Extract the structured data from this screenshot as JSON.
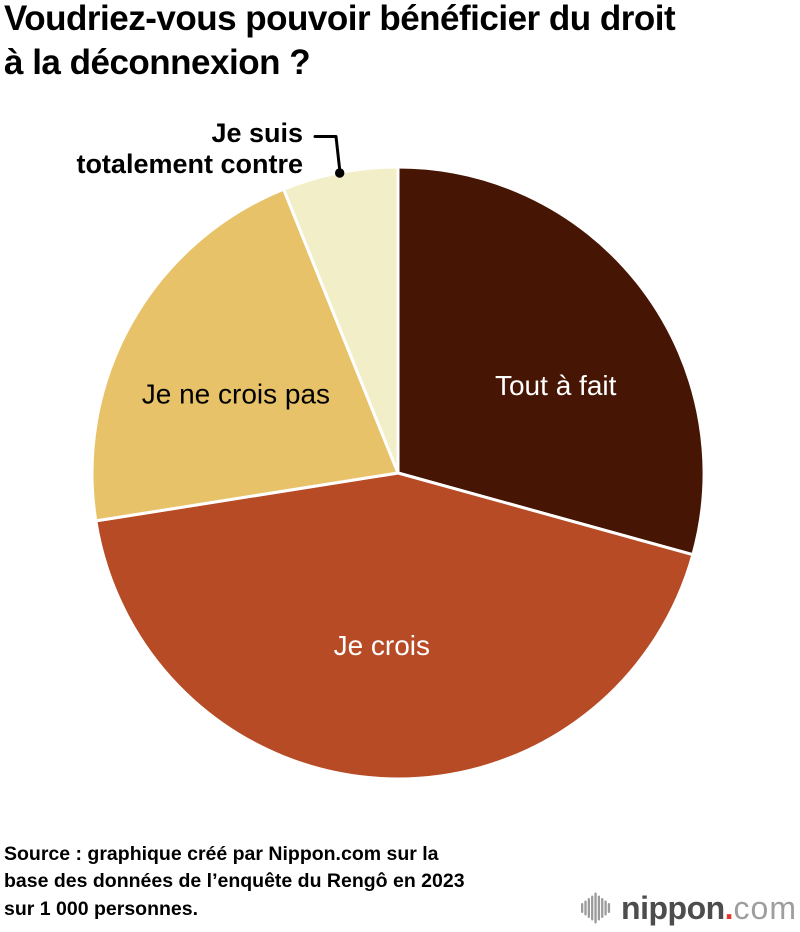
{
  "title": {
    "lines": [
      "Voudriez-vous pouvoir bénéficier du droit",
      "à la déconnexion ?"
    ]
  },
  "chart_data": {
    "type": "pie",
    "title": "Voudriez-vous pouvoir bénéficier du droit à la déconnexion ?",
    "unit": "% (estimated from slice angles; no numeric labels shown in image)",
    "start_angle_deg": 0,
    "direction": "clockwise",
    "slices": [
      {
        "label": "Tout à fait",
        "value": 29.3,
        "color": "#461504",
        "label_color": "#ffffff",
        "label_placement": "inside"
      },
      {
        "label": "Je crois",
        "value": 43.2,
        "color": "#b64b25",
        "label_color": "#ffffff",
        "label_placement": "inside"
      },
      {
        "label": "Je ne crois pas",
        "value": 21.4,
        "color": "#e7c268",
        "label_color": "#000000",
        "label_placement": "inside"
      },
      {
        "label": "Je suis totalement contre",
        "value": 6.1,
        "color": "#f2efc8",
        "label_color": "#000000",
        "label_placement": "outside-callout"
      }
    ],
    "legend": "none",
    "callout": {
      "lines": [
        "Je suis",
        "totalement contre"
      ]
    }
  },
  "source": {
    "lines": [
      "Source : graphique créé par Nippon.com sur la",
      "base des données de l’enquête du Rengô en 2023",
      "sur 1 000 personnes."
    ]
  },
  "logo": {
    "name": "nippon",
    "dot": ".",
    "tld": "com",
    "icon": "soundwave-icon",
    "colors": {
      "name": "#4d4d4d",
      "dot": "#e8332a",
      "tld": "#9e9e9e",
      "wave": "#9b9b9b"
    }
  }
}
